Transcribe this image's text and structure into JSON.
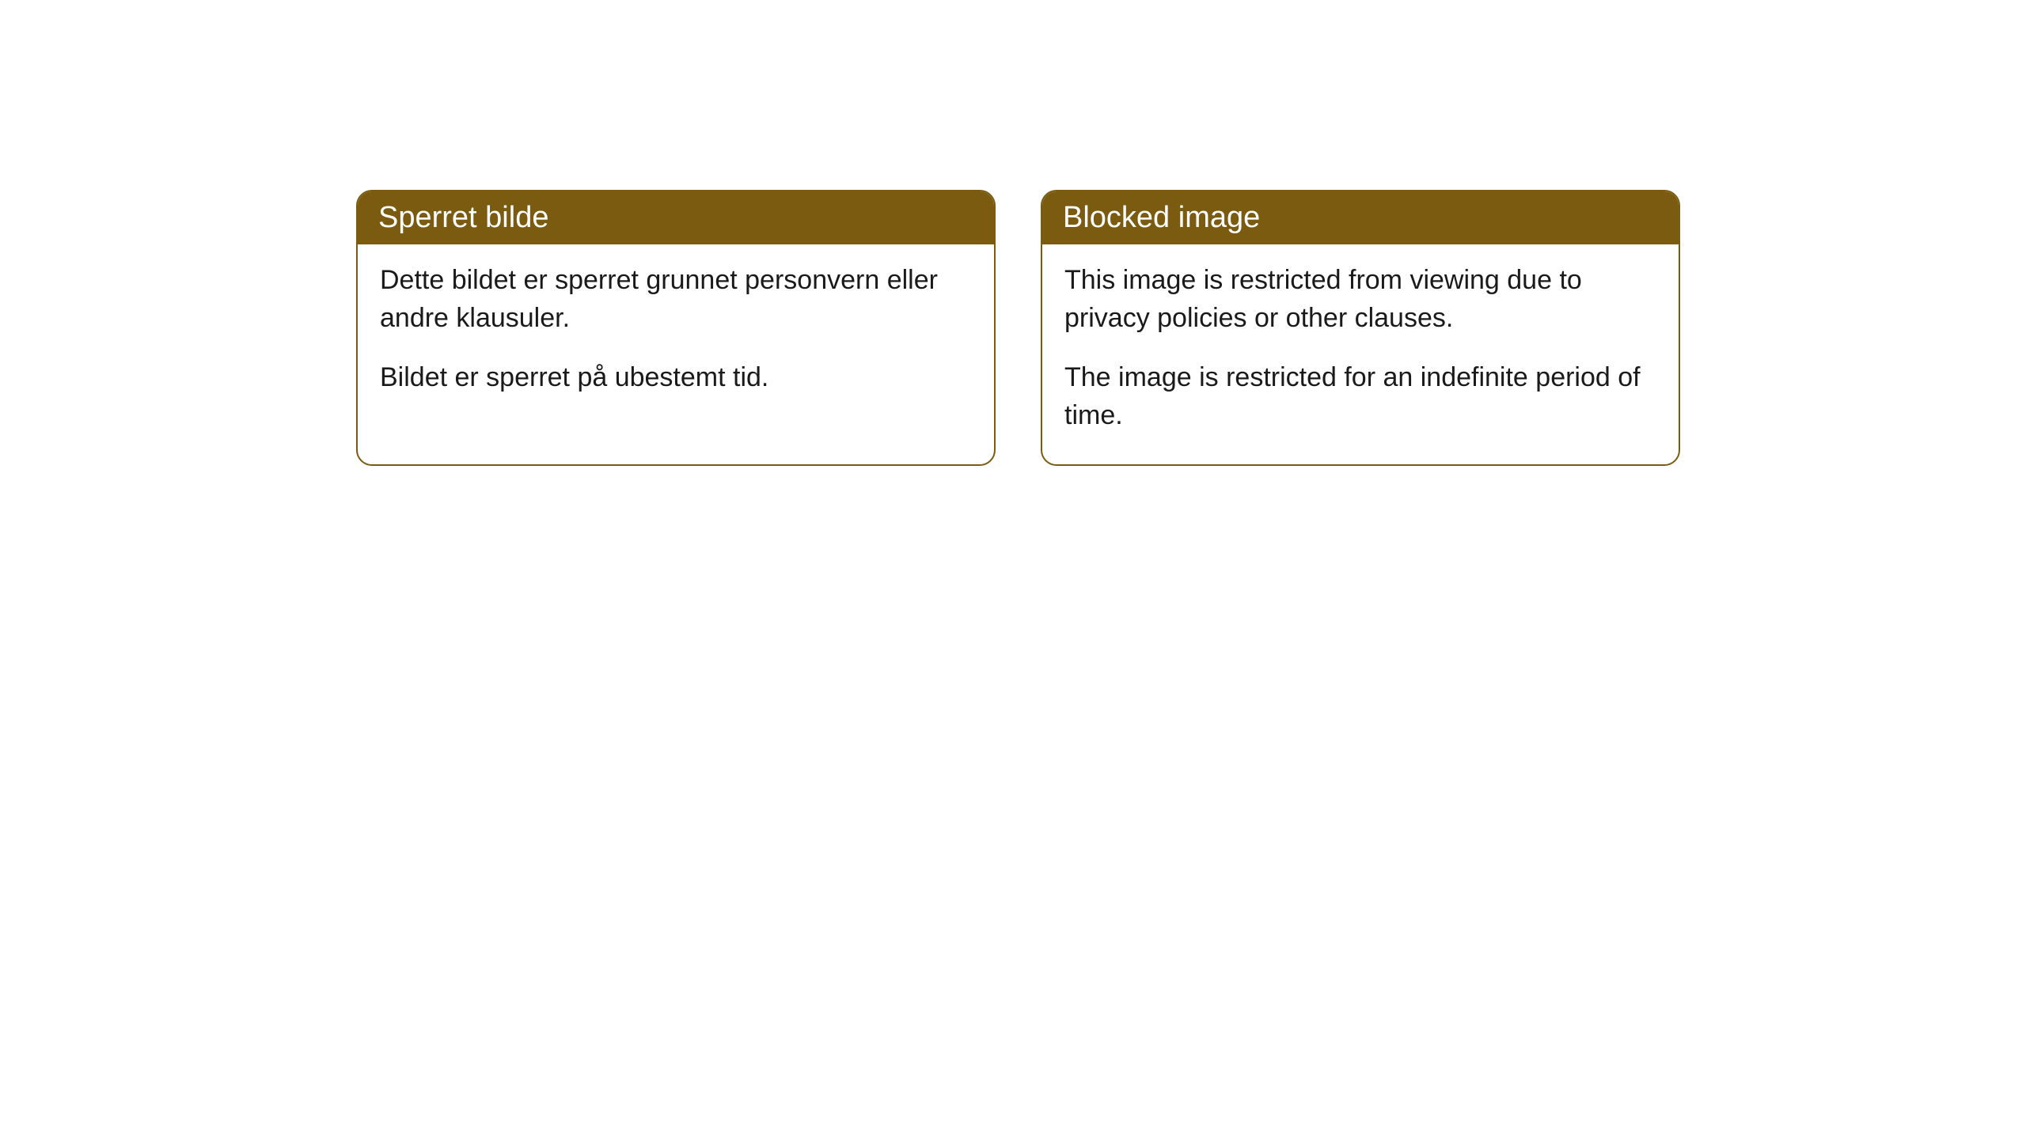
{
  "cards": [
    {
      "title": "Sperret bilde",
      "paragraph1": "Dette bildet er sperret grunnet personvern eller andre klausuler.",
      "paragraph2": "Bildet er sperret på ubestemt tid."
    },
    {
      "title": "Blocked image",
      "paragraph1": "This image is restricted from viewing due to privacy policies or other clauses.",
      "paragraph2": "The image is restricted for an indefinite period of time."
    }
  ],
  "colors": {
    "header_bg": "#7a5b0f",
    "header_text": "#ffffff",
    "border": "#7a5b0f",
    "body_text": "#1a1a1a",
    "background": "#ffffff"
  }
}
